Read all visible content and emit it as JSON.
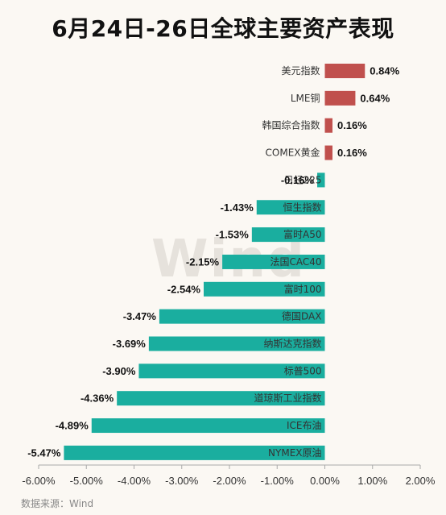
{
  "title": "6月24日-26日全球主要资产表现",
  "source": "数据来源：Wind",
  "watermark": "Wind",
  "colors": {
    "positive": "#c0504d",
    "negative": "#1aae9f",
    "axis": "#aaaaaa"
  },
  "chart_data": {
    "type": "bar",
    "orientation": "horizontal",
    "title": "6月24日-26日全球主要资产表现",
    "categories": [
      "美元指数",
      "LME铜",
      "韩国综合指数",
      "COMEX黄金",
      "日经225",
      "恒生指数",
      "富时A50",
      "法国CAC40",
      "富时100",
      "德国DAX",
      "纳斯达克指数",
      "标普500",
      "道琼斯工业指数",
      "ICE布油",
      "NYMEX原油"
    ],
    "values": [
      0.84,
      0.64,
      0.16,
      0.16,
      -0.16,
      -1.43,
      -1.53,
      -2.15,
      -2.54,
      -3.47,
      -3.69,
      -3.9,
      -4.36,
      -4.89,
      -5.47
    ],
    "value_labels": [
      "0.84%",
      "0.64%",
      "0.16%",
      "0.16%",
      "-0.16%",
      "-1.43%",
      "-1.53%",
      "-2.15%",
      "-2.54%",
      "-3.47%",
      "-3.69%",
      "-3.90%",
      "-4.36%",
      "-4.89%",
      "-5.47%"
    ],
    "xlim": [
      -6,
      2
    ],
    "xticks": [
      -6,
      -5,
      -4,
      -3,
      -2,
      -1,
      0,
      1,
      2
    ],
    "xtick_labels": [
      "-6.00%",
      "-5.00%",
      "-4.00%",
      "-3.00%",
      "-2.00%",
      "-1.00%",
      "0.00%",
      "1.00%",
      "2.00%"
    ],
    "grid": false,
    "legend": "none"
  }
}
